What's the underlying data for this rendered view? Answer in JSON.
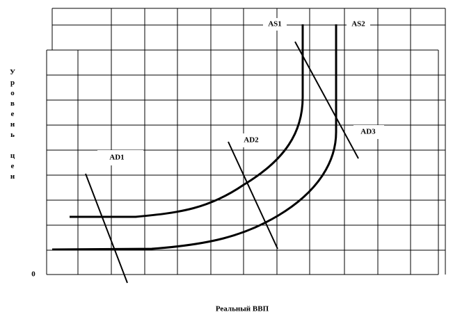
{
  "diagram": {
    "y_axis_label": "Уровень цен",
    "origin_label": "0",
    "x_axis_label": "Реальный ВВП",
    "curves": {
      "as1": "AS1",
      "as2": "AS2",
      "ad1": "AD1",
      "ad2": "AD2",
      "ad3": "AD3"
    }
  }
}
